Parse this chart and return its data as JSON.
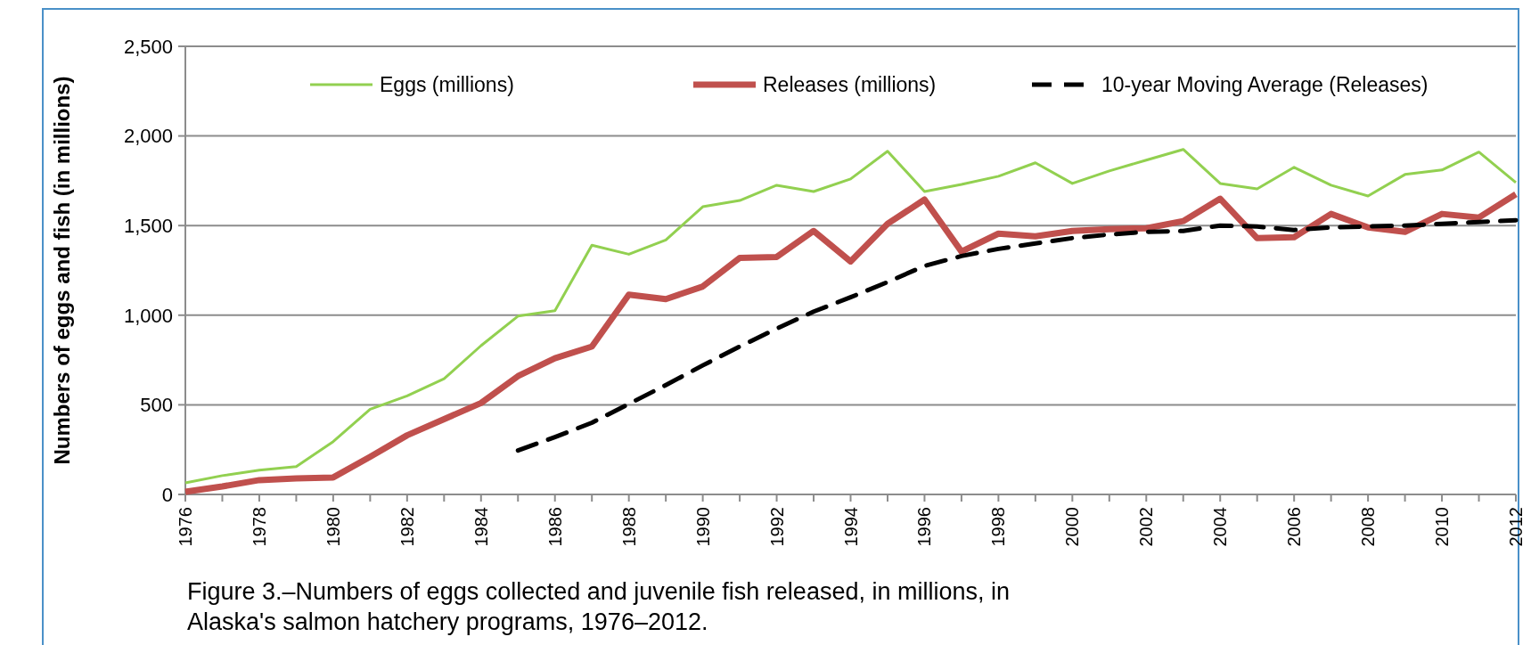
{
  "chart_data": {
    "type": "line",
    "ylabel": "Numbers of eggs and fish (in millions)",
    "x": [
      1976,
      1977,
      1978,
      1979,
      1980,
      1981,
      1982,
      1983,
      1984,
      1985,
      1986,
      1987,
      1988,
      1989,
      1990,
      1991,
      1992,
      1993,
      1994,
      1995,
      1996,
      1997,
      1998,
      1999,
      2000,
      2001,
      2002,
      2003,
      2004,
      2005,
      2006,
      2007,
      2008,
      2009,
      2010,
      2011,
      2012
    ],
    "xlim": [
      1976,
      2012
    ],
    "xticks": [
      1976,
      {
        "value": 1977,
        "label": null
      },
      1978,
      {
        "value": 1979,
        "label": null
      },
      1980,
      {
        "value": 1981,
        "label": null
      },
      1982,
      {
        "value": 1983,
        "label": null
      },
      1984,
      {
        "value": 1985,
        "label": null
      },
      1986,
      {
        "value": 1987,
        "label": null
      },
      1988,
      {
        "value": 1989,
        "label": null
      },
      1990,
      {
        "value": 1991,
        "label": null
      },
      1992,
      {
        "value": 1993,
        "label": null
      },
      1994,
      {
        "value": 1995,
        "label": null
      },
      1996,
      {
        "value": 1997,
        "label": null
      },
      1998,
      {
        "value": 1999,
        "label": null
      },
      2000,
      {
        "value": 2001,
        "label": null
      },
      2002,
      {
        "value": 2003,
        "label": null
      },
      2004,
      {
        "value": 2005,
        "label": null
      },
      2006,
      {
        "value": 2007,
        "label": null
      },
      2008,
      {
        "value": 2009,
        "label": null
      },
      2010,
      {
        "value": 2011,
        "label": null
      },
      2012
    ],
    "ylim": [
      0,
      2500
    ],
    "yticks": [
      0,
      500,
      {
        "value": 1000,
        "label": "1,000"
      },
      {
        "value": 1500,
        "label": "1,500"
      },
      {
        "value": 2000,
        "label": "2,000"
      },
      {
        "value": 2500,
        "label": "2,500"
      }
    ],
    "grid": "y",
    "legend": "top",
    "marker": "none",
    "series": [
      {
        "name": "Eggs (millions)",
        "color": "#92d050",
        "line_style": "solid",
        "values": [
          65,
          105,
          135,
          155,
          295,
          475,
          550,
          645,
          830,
          995,
          1025,
          1390,
          1340,
          1420,
          1605,
          1640,
          1725,
          1690,
          1760,
          1915,
          1690,
          1730,
          1775,
          1850,
          1735,
          1805,
          1865,
          1925,
          1735,
          1705,
          1825,
          1725,
          1665,
          1785,
          1810,
          1910,
          1740
        ]
      },
      {
        "name": "Releases (millions)",
        "color": "#c0504d",
        "line_style": "solid",
        "values": [
          15,
          45,
          80,
          90,
          95,
          210,
          330,
          420,
          510,
          660,
          760,
          825,
          1115,
          1090,
          1160,
          1320,
          1325,
          1470,
          1300,
          1510,
          1645,
          1355,
          1455,
          1440,
          1470,
          1480,
          1485,
          1525,
          1650,
          1430,
          1435,
          1565,
          1490,
          1465,
          1565,
          1545,
          1675
        ]
      },
      {
        "name": "10-year Moving Average (Releases)",
        "color": "#000000",
        "line_style": "dashed",
        "values": [
          null,
          null,
          null,
          null,
          null,
          null,
          null,
          null,
          null,
          245,
          320,
          400,
          505,
          610,
          720,
          825,
          925,
          1020,
          1100,
          1185,
          1275,
          1330,
          1370,
          1400,
          1430,
          1450,
          1465,
          1470,
          1500,
          1495,
          1475,
          1490,
          1495,
          1500,
          1510,
          1520,
          1530
        ]
      }
    ],
    "annotations": [
      "Figure 3.–Numbers of eggs collected and juvenile fish released, in millions, in Alaska's salmon hatchery programs, 1976–2012."
    ]
  }
}
